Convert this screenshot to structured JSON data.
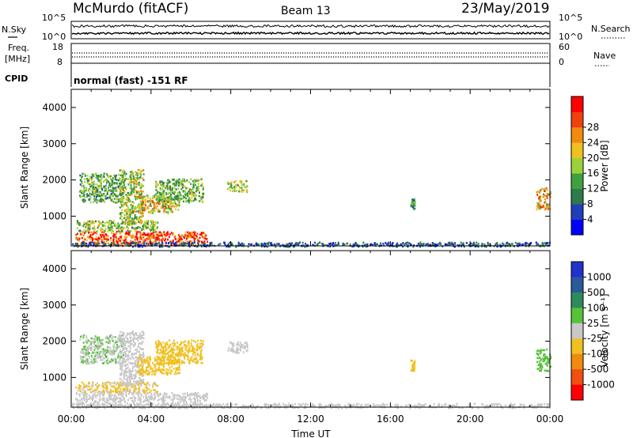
{
  "header": {
    "station": "McMurdo (fitACF)",
    "beam": "Beam 13",
    "date": "23/May/2019"
  },
  "noise_panel": {
    "left_label": "N.Sky",
    "right_label": "N.Search",
    "tick_top": "10^5",
    "tick_bottom": "10^0"
  },
  "freq_panel": {
    "left_label_line1": "Freq.",
    "left_label_line2": "[MHz]",
    "left_tick_top": "18",
    "left_tick_bottom": "8",
    "right_label": "Nave",
    "right_tick_top": "60",
    "right_tick_bottom": "0"
  },
  "cpid_panel": {
    "label": "CPID",
    "text": "normal (fast) -151 RF"
  },
  "colors": {
    "power_scale": [
      "#0000ff",
      "#1f3fb8",
      "#2e7a4a",
      "#3fa040",
      "#9bd23c",
      "#f0c020",
      "#f08a10",
      "#f04010",
      "#ff0000"
    ],
    "velocity_scale": [
      "#2233cc",
      "#2a5a9a",
      "#2e8a5a",
      "#56c23a",
      "#c8c8c8",
      "#f0c020",
      "#f08a10",
      "#f05010",
      "#ff0000"
    ]
  },
  "chart_data": [
    {
      "type": "heatmap",
      "quantity": "power",
      "xlabel": "",
      "ylabel": "Slant Range [km]",
      "xlim": [
        "00:00",
        "24:00"
      ],
      "ylim": [
        180,
        4500
      ],
      "yticks": [
        1000,
        2000,
        3000,
        4000
      ],
      "colorbar": {
        "label": "Power [dB]",
        "ticks": [
          "4",
          "8",
          "12",
          "16",
          "20",
          "24",
          "28"
        ],
        "range": [
          0,
          30
        ]
      },
      "regions": [
        {
          "t0": 0.2,
          "t1": 6.8,
          "r0": 200,
          "r1": 600,
          "value": 26
        },
        {
          "t0": 0.2,
          "t1": 4.3,
          "r0": 600,
          "r1": 900,
          "value": 14
        },
        {
          "t0": 0.4,
          "t1": 2.6,
          "r0": 1400,
          "r1": 2200,
          "value": 12
        },
        {
          "t0": 2.4,
          "t1": 3.6,
          "r0": 800,
          "r1": 2300,
          "value": 15
        },
        {
          "t0": 3.3,
          "t1": 5.4,
          "r0": 1100,
          "r1": 1600,
          "value": 18
        },
        {
          "t0": 4.2,
          "t1": 6.6,
          "r0": 1400,
          "r1": 2050,
          "value": 13
        },
        {
          "t0": 7.8,
          "t1": 8.8,
          "r0": 1700,
          "r1": 2000,
          "value": 15
        },
        {
          "t0": 23.3,
          "t1": 24.0,
          "r0": 1200,
          "r1": 1800,
          "value": 20
        },
        {
          "t0": 17.0,
          "t1": 17.2,
          "r0": 1200,
          "r1": 1500,
          "value": 10
        },
        {
          "t0": 0.0,
          "t1": 24.0,
          "r0": 180,
          "r1": 300,
          "value": 6
        }
      ]
    },
    {
      "type": "heatmap",
      "quantity": "velocity",
      "xlabel": "Time UT",
      "ylabel": "Slant Range [km]",
      "xlim": [
        "00:00",
        "24:00"
      ],
      "ylim": [
        180,
        4500
      ],
      "xticks": [
        "00:00",
        "04:00",
        "08:00",
        "12:00",
        "16:00",
        "20:00",
        "00:00"
      ],
      "yticks": [
        1000,
        2000,
        3000,
        4000
      ],
      "colorbar": {
        "label": "Velocity [m s⁻¹]",
        "ticks": [
          "1000",
          "500",
          "100",
          "25",
          "-25",
          "-100",
          "-500",
          "-1000"
        ],
        "range": [
          -1200,
          1200
        ]
      },
      "regions": [
        {
          "t0": 0.2,
          "t1": 6.8,
          "r0": 200,
          "r1": 600,
          "value": 80
        },
        {
          "t0": 0.2,
          "t1": 4.3,
          "r0": 600,
          "r1": 900,
          "value": -150
        },
        {
          "t0": 0.4,
          "t1": 2.6,
          "r0": 1400,
          "r1": 2200,
          "value": 120
        },
        {
          "t0": 2.4,
          "t1": 3.6,
          "r0": 800,
          "r1": 2300,
          "value": -60
        },
        {
          "t0": 3.3,
          "t1": 5.4,
          "r0": 1100,
          "r1": 1600,
          "value": -300
        },
        {
          "t0": 4.2,
          "t1": 6.6,
          "r0": 1400,
          "r1": 2050,
          "value": -250
        },
        {
          "t0": 7.8,
          "t1": 8.8,
          "r0": 1700,
          "r1": 2000,
          "value": 90
        },
        {
          "t0": 23.3,
          "t1": 24.0,
          "r0": 1200,
          "r1": 1800,
          "value": 200
        },
        {
          "t0": 17.0,
          "t1": 17.2,
          "r0": 1200,
          "r1": 1500,
          "value": -300
        },
        {
          "t0": 0.0,
          "t1": 24.0,
          "r0": 180,
          "r1": 300,
          "value": 50
        }
      ]
    }
  ]
}
